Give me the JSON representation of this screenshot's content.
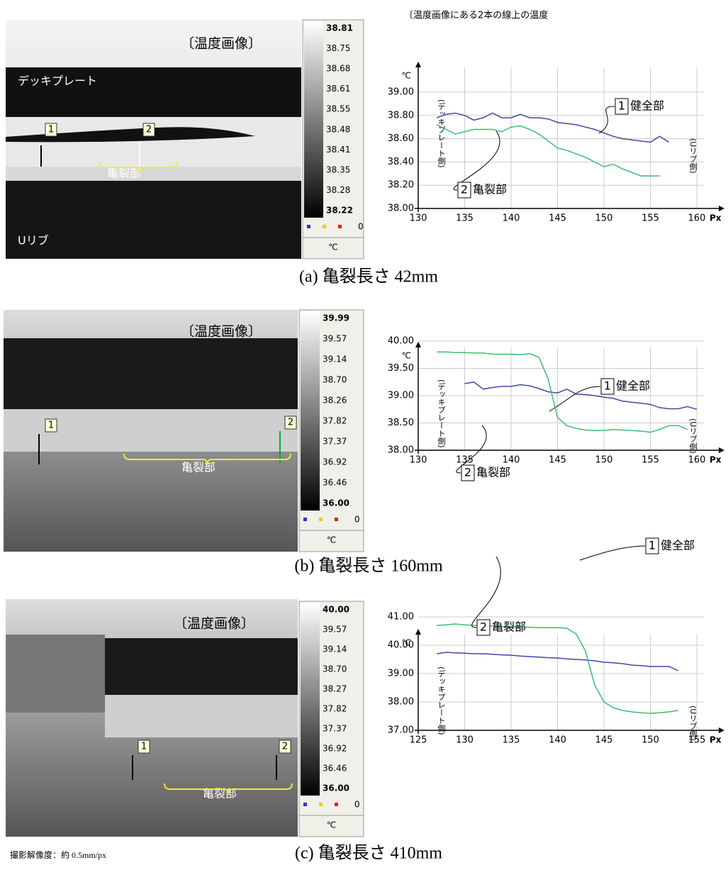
{
  "figure_title": "〔温度画像にある2本の線上の温度",
  "images": [
    {
      "title": "〔温度画像〕",
      "labels": [
        "デッキプレート",
        "Uリブ",
        "1",
        "2",
        "亀裂部"
      ],
      "colorbar": {
        "ticks": [
          "38.81",
          "38.75",
          "38.68",
          "38.61",
          "38.55",
          "38.48",
          "38.41",
          "38.35",
          "38.28",
          "38.22"
        ],
        "legend": "0",
        "unit": "℃"
      }
    },
    {
      "title": "〔温度画像〕",
      "labels": [
        "1",
        "2",
        "亀裂部"
      ],
      "colorbar": {
        "ticks": [
          "39.99",
          "39.57",
          "39.14",
          "38.70",
          "38.26",
          "37.82",
          "37.37",
          "36.92",
          "36.46",
          "36.00"
        ],
        "legend": "0",
        "unit": "℃"
      }
    },
    {
      "title": "〔温度画像〕",
      "labels": [
        "1",
        "2",
        "亀裂部"
      ],
      "colorbar": {
        "ticks": [
          "40.00",
          "39.57",
          "39.14",
          "38.70",
          "38.27",
          "37.82",
          "37.37",
          "36.92",
          "36.46",
          "36.00"
        ],
        "legend": "0",
        "unit": "℃"
      }
    }
  ],
  "chart_data": [
    {
      "type": "line",
      "y_unit": "℃",
      "x_unit": "Px",
      "left_label": "(デッキプレート側)",
      "right_label": "(Uリブ側)",
      "grid": true,
      "xlim": [
        130,
        160
      ],
      "xticks": [
        130,
        135,
        140,
        145,
        150,
        155,
        160
      ],
      "ylim": [
        38,
        39
      ],
      "yticks": [
        {
          "value": 38,
          "label": "38.00"
        },
        {
          "value": 38.2,
          "label": "38.20"
        },
        {
          "value": 38.4,
          "label": "38.40"
        },
        {
          "value": 38.6,
          "label": "38.60"
        },
        {
          "value": 38.8,
          "label": "38.80"
        },
        {
          "value": 39,
          "label": "39.00"
        }
      ],
      "x": [
        132,
        133,
        134,
        135,
        136,
        137,
        138,
        139,
        140,
        141,
        142,
        143,
        144,
        145,
        146,
        147,
        148,
        149,
        150,
        151,
        152,
        153,
        154,
        155,
        156,
        157
      ],
      "series": [
        {
          "name": "健全部",
          "number": "1",
          "color": "#3c4aa8",
          "values": [
            38.78,
            38.81,
            38.82,
            38.8,
            38.76,
            38.78,
            38.82,
            38.78,
            38.78,
            38.81,
            38.78,
            38.78,
            38.77,
            38.74,
            38.73,
            38.72,
            38.7,
            38.68,
            38.65,
            38.62,
            38.6,
            38.59,
            38.58,
            38.57,
            38.62,
            38.57
          ]
        },
        {
          "name": "亀裂部",
          "number": "2",
          "color": "#3cbf6e",
          "values": [
            38.72,
            38.68,
            38.64,
            38.66,
            38.68,
            38.68,
            38.68,
            38.66,
            38.7,
            38.71,
            38.68,
            38.64,
            38.58,
            38.52,
            38.5,
            38.47,
            38.44,
            38.4,
            38.36,
            38.38,
            38.34,
            38.31,
            38.28,
            38.28,
            38.28,
            null
          ]
        }
      ]
    },
    {
      "type": "line",
      "y_unit": "℃",
      "x_unit": "Px",
      "left_label": "(デッキプレート側)",
      "right_label": "(Uリブ側)",
      "grid": true,
      "xlim": [
        130,
        160
      ],
      "xticks": [
        130,
        135,
        140,
        145,
        150,
        155,
        160
      ],
      "ylim": [
        38,
        40
      ],
      "yticks": [
        {
          "value": 38,
          "label": "38.00"
        },
        {
          "value": 38.5,
          "label": "38.50"
        },
        {
          "value": 39,
          "label": "39.00"
        },
        {
          "value": 39.5,
          "label": "39.50"
        },
        {
          "value": 40,
          "label": "40.00"
        }
      ],
      "x": [
        132,
        133,
        134,
        135,
        136,
        137,
        138,
        139,
        140,
        141,
        142,
        143,
        144,
        145,
        146,
        147,
        148,
        149,
        150,
        151,
        152,
        153,
        154,
        155,
        156,
        157,
        158,
        159,
        160
      ],
      "series": [
        {
          "name": "健全部",
          "number": "1",
          "color": "#3c4aa8",
          "values": [
            null,
            null,
            null,
            39.22,
            39.25,
            39.12,
            39.15,
            39.17,
            39.17,
            39.2,
            39.18,
            39.13,
            39.07,
            39.05,
            39.12,
            39.03,
            39.02,
            39.0,
            38.97,
            38.95,
            38.9,
            38.88,
            38.86,
            38.84,
            38.78,
            38.76,
            38.76,
            38.8,
            38.75
          ]
        },
        {
          "name": "亀裂部",
          "number": "2",
          "color": "#3cbf6e",
          "values": [
            39.8,
            39.8,
            39.79,
            39.79,
            39.78,
            39.78,
            39.76,
            39.76,
            39.76,
            39.75,
            39.77,
            39.7,
            39.3,
            38.6,
            38.45,
            38.4,
            38.37,
            38.36,
            38.36,
            38.38,
            38.37,
            38.36,
            38.35,
            38.33,
            38.38,
            38.45,
            38.45,
            38.38,
            null
          ]
        }
      ]
    },
    {
      "type": "line",
      "y_unit": "℃",
      "x_unit": "Px",
      "left_label": "(デッキプレート側)",
      "right_label": "(Uリブ側)",
      "grid": true,
      "xlim": [
        125,
        155
      ],
      "xticks": [
        125,
        130,
        135,
        140,
        145,
        150,
        155
      ],
      "ylim": [
        37,
        41
      ],
      "yticks": [
        {
          "value": 37,
          "label": "37.00"
        },
        {
          "value": 38,
          "label": "38.00"
        },
        {
          "value": 39,
          "label": "39.00"
        },
        {
          "value": 40,
          "label": "40.00"
        },
        {
          "value": 41,
          "label": "41.00"
        }
      ],
      "x": [
        127,
        128,
        129,
        130,
        131,
        132,
        133,
        134,
        135,
        136,
        137,
        138,
        139,
        140,
        141,
        142,
        143,
        144,
        145,
        146,
        147,
        148,
        149,
        150,
        151,
        152,
        153
      ],
      "series": [
        {
          "name": "健全部",
          "number": "1",
          "color": "#3c4aa8",
          "values": [
            39.7,
            39.75,
            39.73,
            39.72,
            39.7,
            39.7,
            39.68,
            39.66,
            39.65,
            39.62,
            39.6,
            39.58,
            39.56,
            39.55,
            39.52,
            39.5,
            39.48,
            39.45,
            39.4,
            39.38,
            39.35,
            39.3,
            39.28,
            39.25,
            39.25,
            39.25,
            39.1
          ]
        },
        {
          "name": "亀裂部",
          "number": "2",
          "color": "#3cbf6e",
          "values": [
            40.7,
            40.72,
            40.75,
            40.72,
            40.7,
            40.7,
            40.68,
            40.66,
            40.65,
            40.64,
            40.63,
            40.62,
            40.62,
            40.62,
            40.6,
            40.4,
            39.8,
            38.6,
            38.0,
            37.8,
            37.7,
            37.65,
            37.62,
            37.6,
            37.62,
            37.65,
            37.7
          ]
        }
      ]
    }
  ],
  "captions": [
    "(a) 亀裂長さ 42mm",
    "(b) 亀裂長さ 160mm",
    "(c) 亀裂長さ 410mm"
  ],
  "note": "撮影解像度：約 0.5mm/px"
}
